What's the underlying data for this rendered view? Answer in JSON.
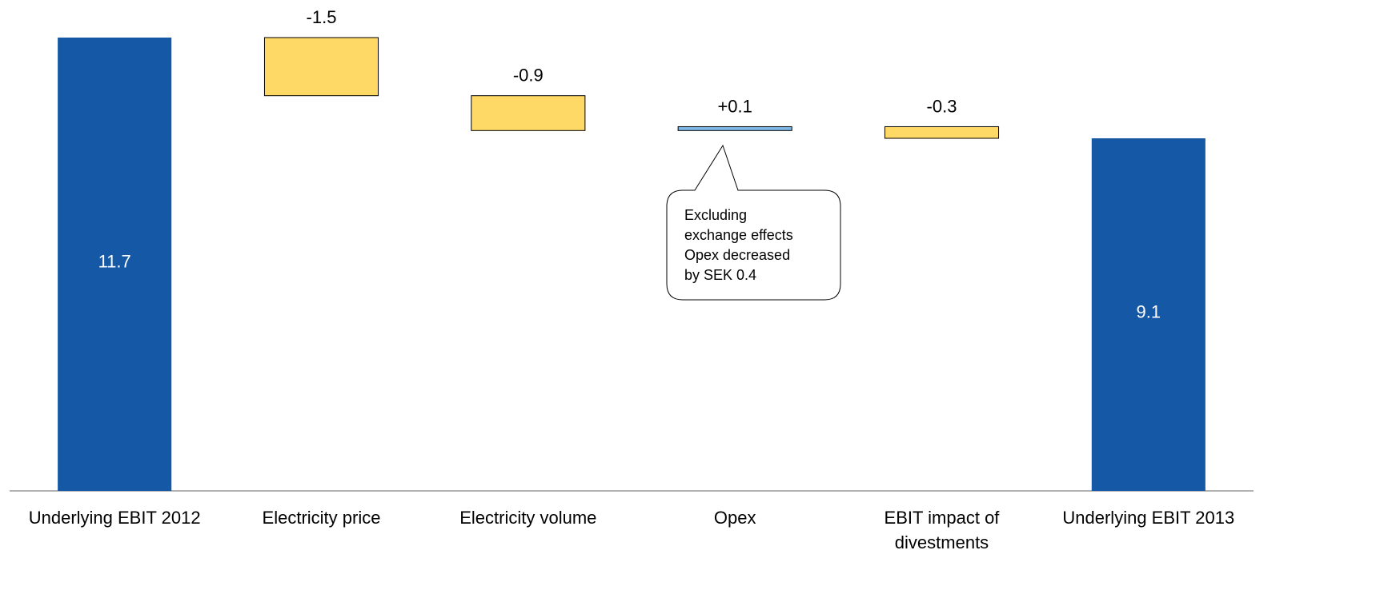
{
  "chart_data": {
    "type": "waterfall",
    "categories": [
      "Underlying EBIT 2012",
      "Electricity price",
      "Electricity volume",
      "Opex",
      "EBIT impact of divestments",
      "Underlying EBIT 2013"
    ],
    "values": [
      11.7,
      -1.5,
      -0.9,
      0.1,
      -0.3,
      9.1
    ],
    "value_labels": [
      "11.7",
      "-1.5",
      "-0.9",
      "+0.1",
      "-0.3",
      "9.1"
    ],
    "is_total": [
      true,
      false,
      false,
      false,
      false,
      true
    ],
    "colors": {
      "total": "#1558a5",
      "decrease": "#ffd966",
      "increase": "#7fb8e6"
    },
    "annotation": {
      "category_index": 3,
      "lines": [
        "Excluding",
        "exchange effects",
        "Opex decreased",
        "by SEK 0.4"
      ]
    }
  }
}
